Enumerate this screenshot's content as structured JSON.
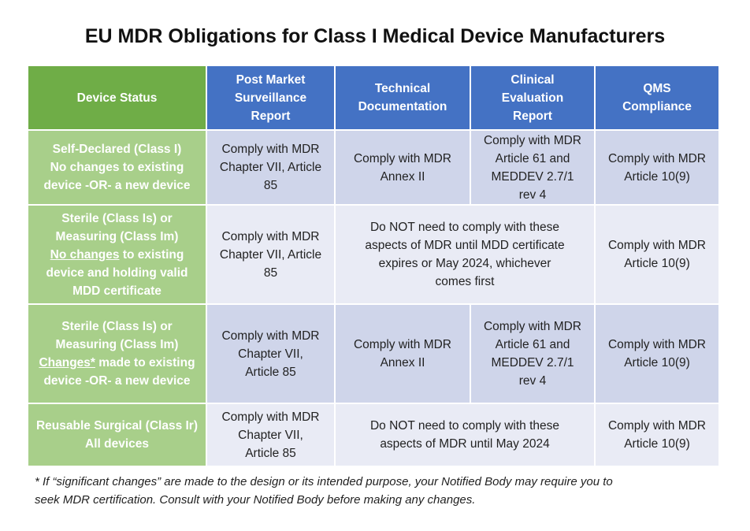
{
  "title": "EU MDR Obligations for Class I Medical Device Manufacturers",
  "headers": {
    "device_status": "Device Status",
    "pms": [
      "Post Market",
      "Surveillance",
      "Report"
    ],
    "tech": [
      "Technical",
      "Documentation"
    ],
    "clinical": [
      "Clinical",
      "Evaluation",
      "Report"
    ],
    "qms": [
      "QMS",
      "Compliance"
    ]
  },
  "rows": [
    {
      "status": [
        "Self-Declared (Class I)",
        "No changes to existing",
        "device -OR- a new device"
      ],
      "pms": [
        "Comply with MDR",
        "Chapter VII, Article",
        "85"
      ],
      "tech": [
        "Comply with MDR",
        "Annex II"
      ],
      "clinical": [
        "Comply with MDR",
        "Article 61 and",
        "MEDDEV 2.7/1",
        "rev 4"
      ],
      "qms": [
        "Comply with MDR",
        "Article 10(9)"
      ]
    },
    {
      "status": [
        "Sterile (Class Is) or",
        "Measuring (Class Im)"
      ],
      "status_underlined": "No changes",
      "status_rest": [
        " to existing",
        "device and holding valid",
        "MDD certificate"
      ],
      "pms": [
        "Comply with MDR",
        "Chapter VII, Article",
        "85"
      ],
      "merged": [
        "Do NOT need to comply with these",
        "aspects of MDR until MDD certificate",
        "expires or May 2024, whichever",
        "comes first"
      ],
      "qms": [
        "Comply with MDR",
        "Article 10(9)"
      ]
    },
    {
      "status": [
        "Sterile (Class Is) or",
        "Measuring (Class Im)"
      ],
      "status_underlined": "Changes*",
      "status_rest": [
        " made to existing",
        "device -OR- a new device"
      ],
      "pms": [
        "Comply with MDR",
        "Chapter VII,",
        "Article 85"
      ],
      "tech": [
        "Comply with MDR",
        "Annex II"
      ],
      "clinical": [
        "Comply with MDR",
        "Article 61 and",
        "MEDDEV 2.7/1",
        "rev 4"
      ],
      "qms": [
        "Comply with MDR",
        "Article 10(9)"
      ]
    },
    {
      "status": [
        "Reusable Surgical (Class Ir)",
        "All devices"
      ],
      "pms": [
        "Comply with MDR",
        "Chapter VII,",
        "Article 85"
      ],
      "merged": [
        "Do NOT need to comply with these",
        "aspects of MDR until May 2024"
      ],
      "qms": [
        "Comply with MDR",
        "Article 10(9)"
      ]
    }
  ],
  "footnote": [
    "* If “significant changes” are made to the design or its intended purpose, your Notified Body may require you to",
    "seek MDR certification. Consult with your Notified Body before making any changes."
  ]
}
